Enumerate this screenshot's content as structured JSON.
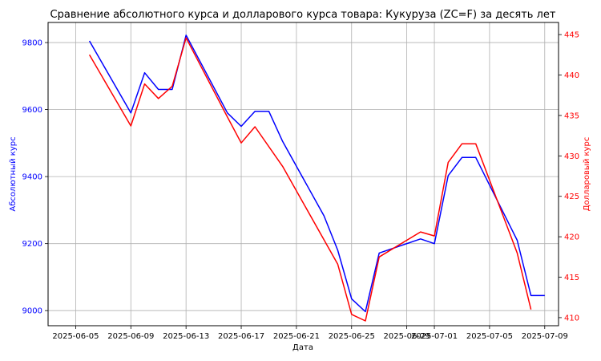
{
  "chart_data": {
    "type": "line",
    "title": "Сравнение абсолютного курса и долларового курса товара: Кукуруза (ZC=F) за десять лет",
    "xlabel": "Дата",
    "ylabel_left": "Абсолютный курс",
    "ylabel_right": "Долларовый курс",
    "grid": true,
    "x_range": [
      "2025-06-03",
      "2025-07-10"
    ],
    "ylim_left": [
      8955,
      9860
    ],
    "ylim_right": [
      409.0,
      446.5
    ],
    "x_ticks": [
      "2025-06-05",
      "2025-06-09",
      "2025-06-13",
      "2025-06-17",
      "2025-06-21",
      "2025-06-25",
      "2025-06-29",
      "2025-07-01",
      "2025-07-05",
      "2025-07-09"
    ],
    "y_ticks_left": [
      9000,
      9200,
      9400,
      9600,
      9800
    ],
    "y_ticks_right": [
      410,
      415,
      420,
      425,
      430,
      435,
      440,
      445
    ],
    "colors": {
      "left": "#0000ff",
      "right": "#ff0000"
    },
    "series": [
      {
        "name": "Абсолютный курс",
        "axis": "left",
        "color": "#0000ff",
        "points": [
          [
            "2025-06-06",
            9805
          ],
          [
            "2025-06-09",
            9590
          ],
          [
            "2025-06-10",
            9710
          ],
          [
            "2025-06-11",
            9660
          ],
          [
            "2025-06-12",
            9660
          ],
          [
            "2025-06-13",
            9822
          ],
          [
            "2025-06-16",
            9590
          ],
          [
            "2025-06-17",
            9550
          ],
          [
            "2025-06-18",
            9595
          ],
          [
            "2025-06-19",
            9595
          ],
          [
            "2025-06-20",
            9505
          ],
          [
            "2025-06-23",
            9283
          ],
          [
            "2025-06-24",
            9180
          ],
          [
            "2025-06-25",
            9035
          ],
          [
            "2025-06-26",
            8997
          ],
          [
            "2025-06-27",
            9172
          ],
          [
            "2025-06-30",
            9214
          ],
          [
            "2025-07-01",
            9200
          ],
          [
            "2025-07-02",
            9403
          ],
          [
            "2025-07-03",
            9457
          ],
          [
            "2025-07-04",
            9457
          ],
          [
            "2025-07-07",
            9210
          ],
          [
            "2025-07-08",
            9045
          ],
          [
            "2025-07-09",
            9045
          ]
        ]
      },
      {
        "name": "Долларовый курс",
        "axis": "right",
        "color": "#ff0000",
        "points": [
          [
            "2025-06-06",
            442.5
          ],
          [
            "2025-06-09",
            433.7
          ],
          [
            "2025-06-10",
            438.9
          ],
          [
            "2025-06-11",
            437.1
          ],
          [
            "2025-06-12",
            438.6
          ],
          [
            "2025-06-13",
            444.6
          ],
          [
            "2025-06-16",
            434.8
          ],
          [
            "2025-06-17",
            431.6
          ],
          [
            "2025-06-18",
            433.6
          ],
          [
            "2025-06-20",
            428.7
          ],
          [
            "2025-06-24",
            416.6
          ],
          [
            "2025-06-25",
            410.4
          ],
          [
            "2025-06-26",
            409.6
          ],
          [
            "2025-06-27",
            417.5
          ],
          [
            "2025-06-30",
            420.6
          ],
          [
            "2025-07-01",
            420.1
          ],
          [
            "2025-07-02",
            429.2
          ],
          [
            "2025-07-03",
            431.5
          ],
          [
            "2025-07-04",
            431.5
          ],
          [
            "2025-07-07",
            418.0
          ],
          [
            "2025-07-08",
            411.0
          ]
        ]
      }
    ]
  }
}
